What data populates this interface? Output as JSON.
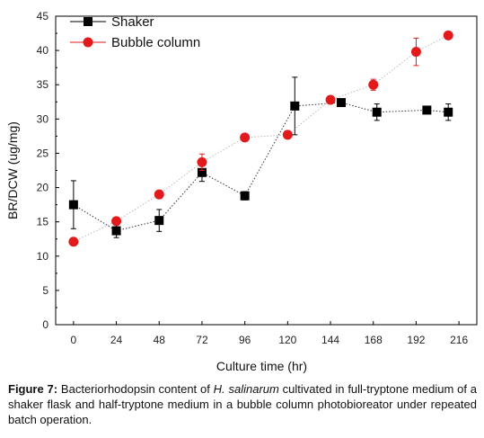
{
  "chart_data": {
    "type": "scatter",
    "xlabel": "Culture time (hr)",
    "ylabel": "BR/DCW (ug/mg)",
    "x_ticks": [
      0,
      24,
      48,
      72,
      96,
      120,
      144,
      168,
      192,
      216
    ],
    "y_ticks": [
      0,
      5,
      10,
      15,
      20,
      25,
      30,
      35,
      40,
      45
    ],
    "xlim": [
      -10,
      226
    ],
    "ylim": [
      0,
      45
    ],
    "legend_position": "top-left",
    "series": [
      {
        "name": "Shaker",
        "color": "#000000",
        "marker": "square",
        "line": "dotted",
        "points": [
          {
            "x": 0,
            "y": 17.5,
            "err": 3.5
          },
          {
            "x": 24,
            "y": 13.7,
            "err": 1.0
          },
          {
            "x": 48,
            "y": 15.2,
            "err": 1.6
          },
          {
            "x": 72,
            "y": 22.2,
            "err": 1.3
          },
          {
            "x": 96,
            "y": 18.8,
            "err": 0.6
          },
          {
            "x": 124,
            "y": 31.9,
            "err": 4.2
          },
          {
            "x": 150,
            "y": 32.4,
            "err": 0.5
          },
          {
            "x": 170,
            "y": 31.0,
            "err": 1.2
          },
          {
            "x": 198,
            "y": 31.3,
            "err": 0.4
          },
          {
            "x": 210,
            "y": 31.0,
            "err": 1.2
          }
        ]
      },
      {
        "name": "Bubble column",
        "color": "#e31a1c",
        "marker": "circle",
        "line": "dotted",
        "points": [
          {
            "x": 0,
            "y": 12.1,
            "err": 0.3
          },
          {
            "x": 24,
            "y": 15.1,
            "err": 0.3
          },
          {
            "x": 48,
            "y": 19.0,
            "err": 0.3
          },
          {
            "x": 72,
            "y": 23.7,
            "err": 1.2
          },
          {
            "x": 96,
            "y": 27.3,
            "err": 0.3
          },
          {
            "x": 120,
            "y": 27.7,
            "err": 0.3
          },
          {
            "x": 144,
            "y": 32.8,
            "err": 0.5
          },
          {
            "x": 168,
            "y": 35.0,
            "err": 0.8
          },
          {
            "x": 192,
            "y": 39.8,
            "err": 2.0
          },
          {
            "x": 210,
            "y": 42.2,
            "err": 0.3
          }
        ]
      }
    ]
  },
  "caption": {
    "label": "Figure 7:",
    "text_before": " Bacteriorhodopsin content of ",
    "organism": "H. salinarum",
    "text_after": " cultivated in full-tryptone medium of a shaker flask and half-tryptone medium in a bubble column photobioreator under repeated batch operation."
  }
}
